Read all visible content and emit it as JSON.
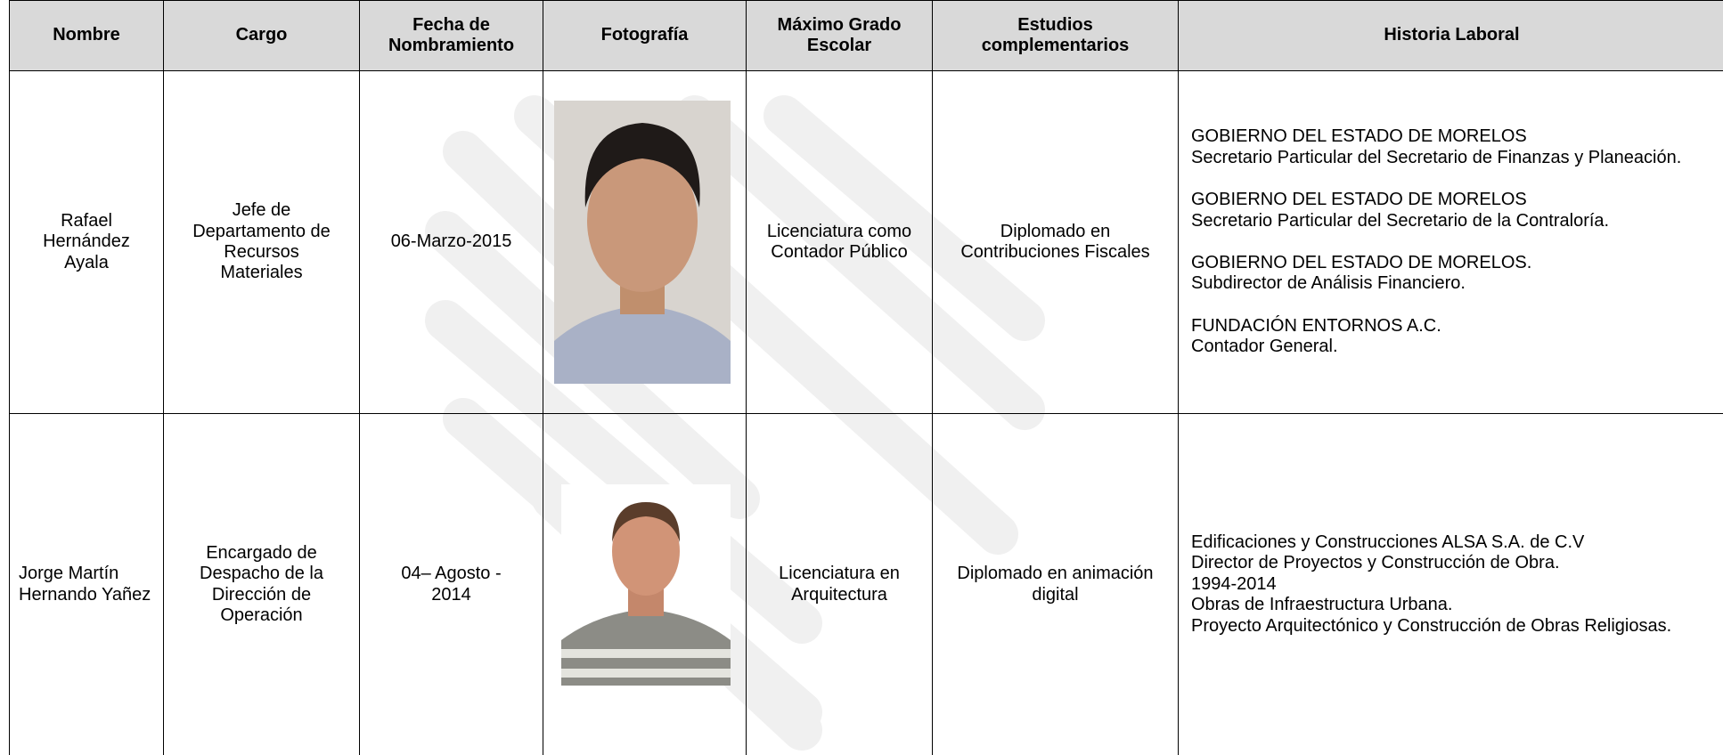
{
  "table": {
    "header": [
      "Nombre",
      "Cargo",
      "Fecha de Nombramiento",
      "Fotografía",
      "Máximo Grado Escolar",
      "Estudios complementarios",
      "Historia Laboral"
    ],
    "rows": [
      {
        "nombre": "Rafael Hernández Ayala",
        "cargo": "Jefe de Departamento de Recursos Materiales",
        "fecha": "06-Marzo-2015",
        "grado": "Licenciatura como Contador Público",
        "estudios": "Diplomado en Contribuciones Fiscales",
        "historia": [
          [
            "GOBIERNO DEL ESTADO DE MORELOS",
            "Secretario Particular del Secretario de Finanzas y Planeación."
          ],
          [
            "GOBIERNO DEL ESTADO DE MORELOS",
            "Secretario Particular del Secretario de la Contraloría."
          ],
          [
            "GOBIERNO DEL ESTADO DE MORELOS.",
            "Subdirector de Análisis Financiero."
          ],
          [
            "FUNDACIÓN ENTORNOS A.C.",
            "Contador General."
          ]
        ]
      },
      {
        "nombre": "Jorge Martín Hernando Yañez",
        "cargo": "Encargado de Despacho de la Dirección de Operación",
        "fecha": "04– Agosto - 2014",
        "grado": "Licenciatura en Arquitectura",
        "estudios": "Diplomado en animación digital",
        "historia": [
          [
            "Edificaciones y Construcciones ALSA S.A. de C.V",
            "Director de Proyectos y Construcción de Obra.",
            "1994-2014",
            "Obras de Infraestructura Urbana.",
            "Proyecto Arquitectónico y Construcción de Obras Religiosas."
          ]
        ]
      }
    ]
  }
}
